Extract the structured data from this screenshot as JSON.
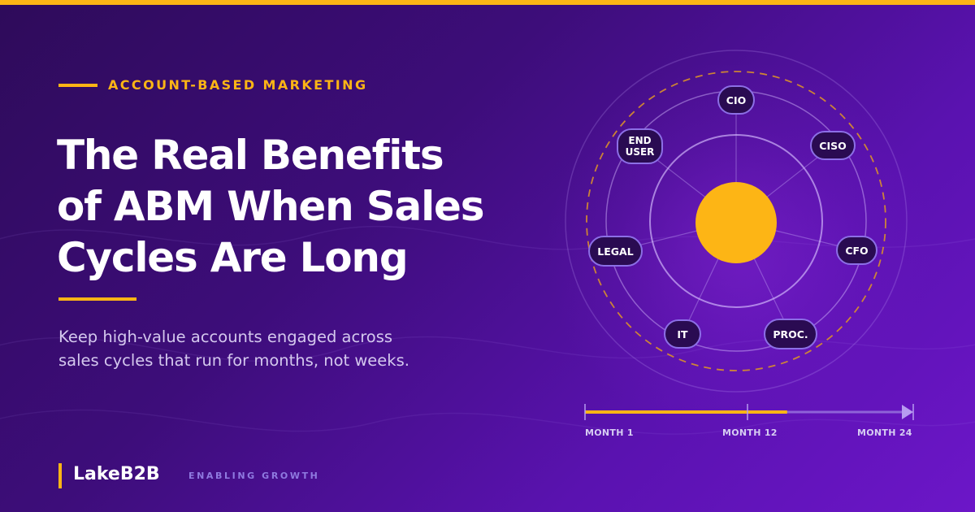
{
  "header": {
    "eyebrow": "ACCOUNT-BASED MARKETING",
    "title_line_1": "The Real Benefits",
    "title_line_2": "of ABM When Sales",
    "title_line_3": "Cycles Are Long",
    "subtitle_line_1": "Keep high-value accounts engaged across",
    "subtitle_line_2": "sales cycles that run for months, not weeks."
  },
  "diagram": {
    "nodes": {
      "cio": "CIO",
      "ciso": "CISO",
      "cfo": "CFO",
      "proc": "PROC.",
      "it": "IT",
      "legal": "LEGAL",
      "end_user_line_1": "END",
      "end_user_line_2": "USER"
    }
  },
  "timeline": {
    "labels": [
      "MONTH 1",
      "MONTH 12",
      "MONTH 24"
    ],
    "progress": 0.625
  },
  "brand": {
    "name": "LakeB2B",
    "tagline": "ENABLING GROWTH"
  },
  "colors": {
    "accent": "#FDB515",
    "background_start": "#2e0b5a",
    "background_end": "#6c16c8",
    "node_border": "#8c6fe6"
  }
}
